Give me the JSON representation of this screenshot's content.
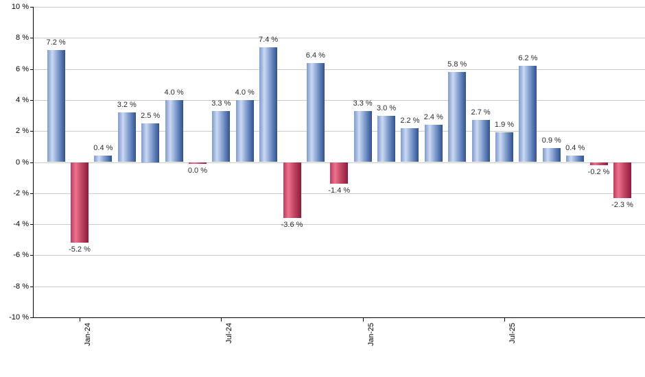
{
  "chart_data": {
    "type": "bar",
    "title": "",
    "xlabel": "",
    "ylabel": "",
    "ylim": [
      -10,
      10
    ],
    "grid": true,
    "legend": false,
    "y_ticks": [
      {
        "value": 10,
        "label": "10 %"
      },
      {
        "value": 8,
        "label": "8 %"
      },
      {
        "value": 6,
        "label": "6 %"
      },
      {
        "value": 4,
        "label": "4 %"
      },
      {
        "value": 2,
        "label": "2 %"
      },
      {
        "value": 0,
        "label": "0 %"
      },
      {
        "value": -2,
        "label": "-2 %"
      },
      {
        "value": -4,
        "label": "-4 %"
      },
      {
        "value": -6,
        "label": "-6 %"
      },
      {
        "value": -8,
        "label": "-8 %"
      },
      {
        "value": -10,
        "label": "-10 %"
      }
    ],
    "x_ticks": [
      {
        "bar_index": 1,
        "label": "Jan-24"
      },
      {
        "bar_index": 7,
        "label": "Jul-24"
      },
      {
        "bar_index": 13,
        "label": "Jan-25"
      },
      {
        "bar_index": 19,
        "label": "Jul-25"
      }
    ],
    "bars": [
      {
        "value": 7.2,
        "label": "7.2 %",
        "color": "blue"
      },
      {
        "value": -5.2,
        "label": "-5.2 %",
        "color": "red"
      },
      {
        "value": 0.4,
        "label": "0.4 %",
        "color": "blue"
      },
      {
        "value": 3.2,
        "label": "3.2 %",
        "color": "blue"
      },
      {
        "value": 2.5,
        "label": "2.5 %",
        "color": "blue"
      },
      {
        "value": 4.0,
        "label": "4.0 %",
        "color": "blue"
      },
      {
        "value": 0.0,
        "label": "0.0 %",
        "color": "red"
      },
      {
        "value": 3.3,
        "label": "3.3 %",
        "color": "blue"
      },
      {
        "value": 4.0,
        "label": "4.0 %",
        "color": "blue"
      },
      {
        "value": 7.4,
        "label": "7.4 %",
        "color": "blue"
      },
      {
        "value": -3.6,
        "label": "-3.6 %",
        "color": "red"
      },
      {
        "value": 6.4,
        "label": "6.4 %",
        "color": "blue"
      },
      {
        "value": -1.4,
        "label": "-1.4 %",
        "color": "red"
      },
      {
        "value": 3.3,
        "label": "3.3 %",
        "color": "blue"
      },
      {
        "value": 3.0,
        "label": "3.0 %",
        "color": "blue"
      },
      {
        "value": 2.2,
        "label": "2.2 %",
        "color": "blue"
      },
      {
        "value": 2.4,
        "label": "2.4 %",
        "color": "blue"
      },
      {
        "value": 5.8,
        "label": "5.8 %",
        "color": "blue"
      },
      {
        "value": 2.7,
        "label": "2.7 %",
        "color": "blue"
      },
      {
        "value": 1.9,
        "label": "1.9 %",
        "color": "blue"
      },
      {
        "value": 6.2,
        "label": "6.2 %",
        "color": "blue"
      },
      {
        "value": 0.9,
        "label": "0.9 %",
        "color": "blue"
      },
      {
        "value": 0.4,
        "label": "0.4 %",
        "color": "blue"
      },
      {
        "value": -0.2,
        "label": "-0.2 %",
        "color": "red"
      },
      {
        "value": -2.3,
        "label": "-2.3 %",
        "color": "red"
      }
    ],
    "palette": {
      "positive_left": "#7e9ace",
      "positive_highlight": "#cbd9f2",
      "positive_mid": "#7d9bcd",
      "positive_right": "#2f5191",
      "negative_left": "#bd3a5c",
      "negative_highlight": "#ec7390",
      "negative_mid": "#c04563",
      "negative_right": "#8e1c3a",
      "gridline": "#c9c9c9",
      "axis": "#000000",
      "value_text": "#2b2b2b"
    }
  }
}
